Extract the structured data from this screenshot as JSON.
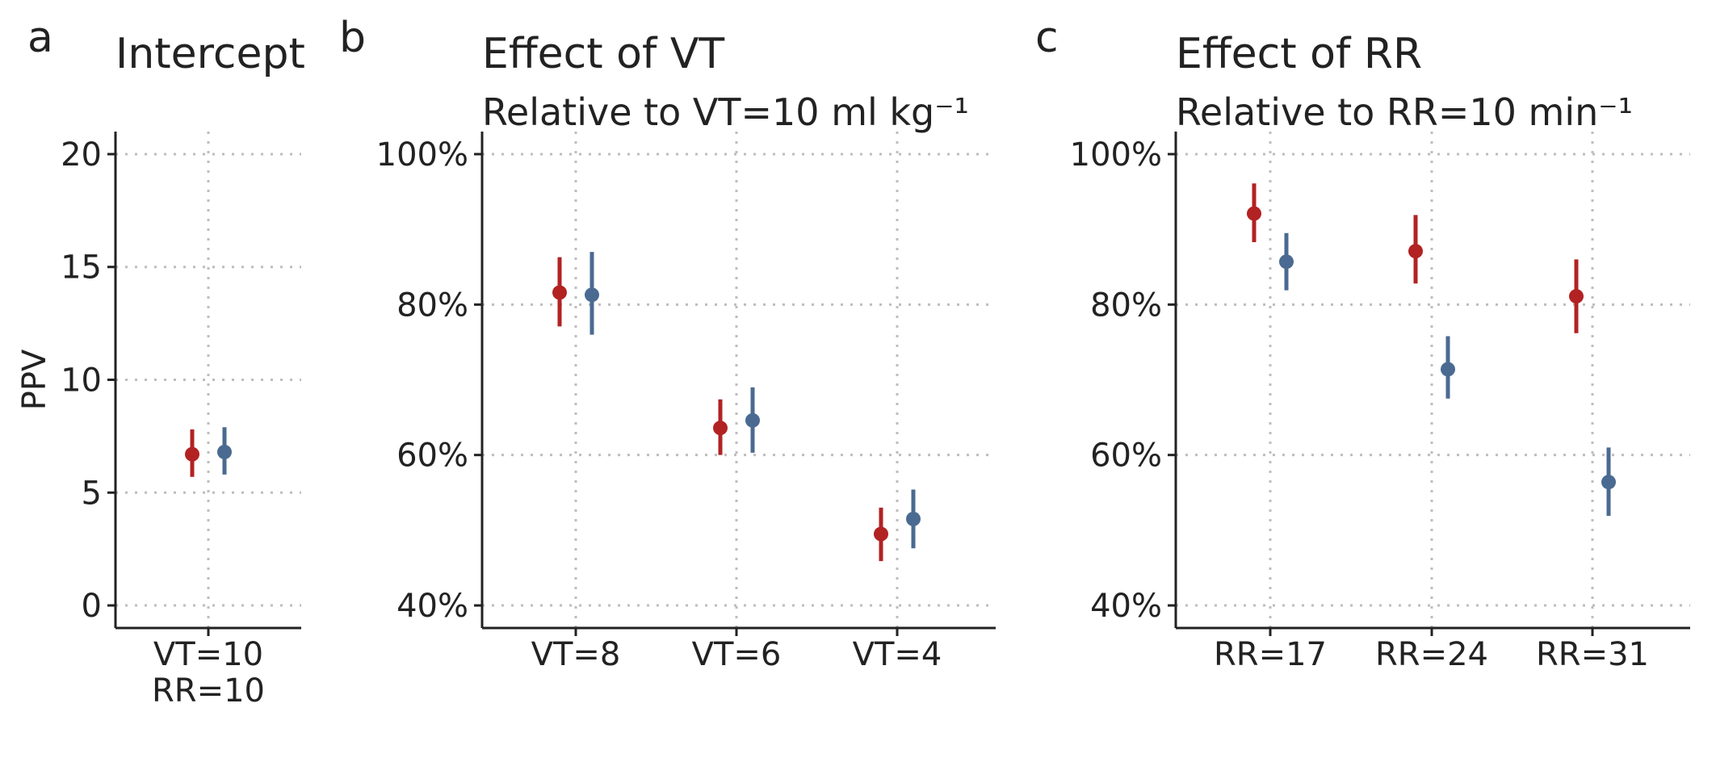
{
  "chart_data": [
    {
      "type": "scatter",
      "panel_letter": "a",
      "title": "Intercept",
      "subtitle": "",
      "ylabel": "PPV",
      "xlabel": "",
      "ylim": [
        -1,
        21
      ],
      "yticks": [
        0,
        5,
        10,
        15,
        20
      ],
      "ytick_labels": [
        "0",
        "5",
        "10",
        "15",
        "20"
      ],
      "categories": [
        [
          "VT=10",
          "RR=10"
        ]
      ],
      "grid": true,
      "series": [
        {
          "color": "#b22222",
          "values": [
            6.7
          ],
          "lower": [
            5.7
          ],
          "upper": [
            7.8
          ]
        },
        {
          "color": "#4a6a91",
          "values": [
            6.8
          ],
          "lower": [
            5.8
          ],
          "upper": [
            7.9
          ]
        }
      ]
    },
    {
      "type": "scatter",
      "panel_letter": "b",
      "title": "Effect of VT",
      "subtitle": "Relative to VT=10 ml kg⁻¹",
      "ylabel": "",
      "xlabel": "",
      "ylim": [
        0.37,
        1.03
      ],
      "yticks": [
        0.4,
        0.6,
        0.8,
        1.0
      ],
      "ytick_labels": [
        "40%",
        "60%",
        "80%",
        "100%"
      ],
      "categories": [
        [
          "VT=8"
        ],
        [
          "VT=6"
        ],
        [
          "VT=4"
        ]
      ],
      "grid": true,
      "series": [
        {
          "color": "#b22222",
          "values": [
            0.816,
            0.636,
            0.495
          ],
          "lower": [
            0.771,
            0.6,
            0.459
          ],
          "upper": [
            0.863,
            0.674,
            0.53
          ]
        },
        {
          "color": "#4a6a91",
          "values": [
            0.813,
            0.646,
            0.515
          ],
          "lower": [
            0.76,
            0.603,
            0.476
          ],
          "upper": [
            0.87,
            0.69,
            0.554
          ]
        }
      ]
    },
    {
      "type": "scatter",
      "panel_letter": "c",
      "title": "Effect of RR",
      "subtitle": "Relative to RR=10 min⁻¹",
      "ylabel": "",
      "xlabel": "",
      "ylim": [
        0.37,
        1.03
      ],
      "yticks": [
        0.4,
        0.6,
        0.8,
        1.0
      ],
      "ytick_labels": [
        "40%",
        "60%",
        "80%",
        "100%"
      ],
      "categories": [
        [
          "RR=17"
        ],
        [
          "RR=24"
        ],
        [
          "RR=31"
        ]
      ],
      "grid": true,
      "series": [
        {
          "color": "#b22222",
          "values": [
            0.921,
            0.871,
            0.811
          ],
          "lower": [
            0.883,
            0.828,
            0.762
          ],
          "upper": [
            0.961,
            0.919,
            0.86
          ]
        },
        {
          "color": "#4a6a91",
          "values": [
            0.857,
            0.714,
            0.564
          ],
          "lower": [
            0.819,
            0.675,
            0.519
          ],
          "upper": [
            0.895,
            0.758,
            0.61
          ]
        }
      ]
    }
  ]
}
